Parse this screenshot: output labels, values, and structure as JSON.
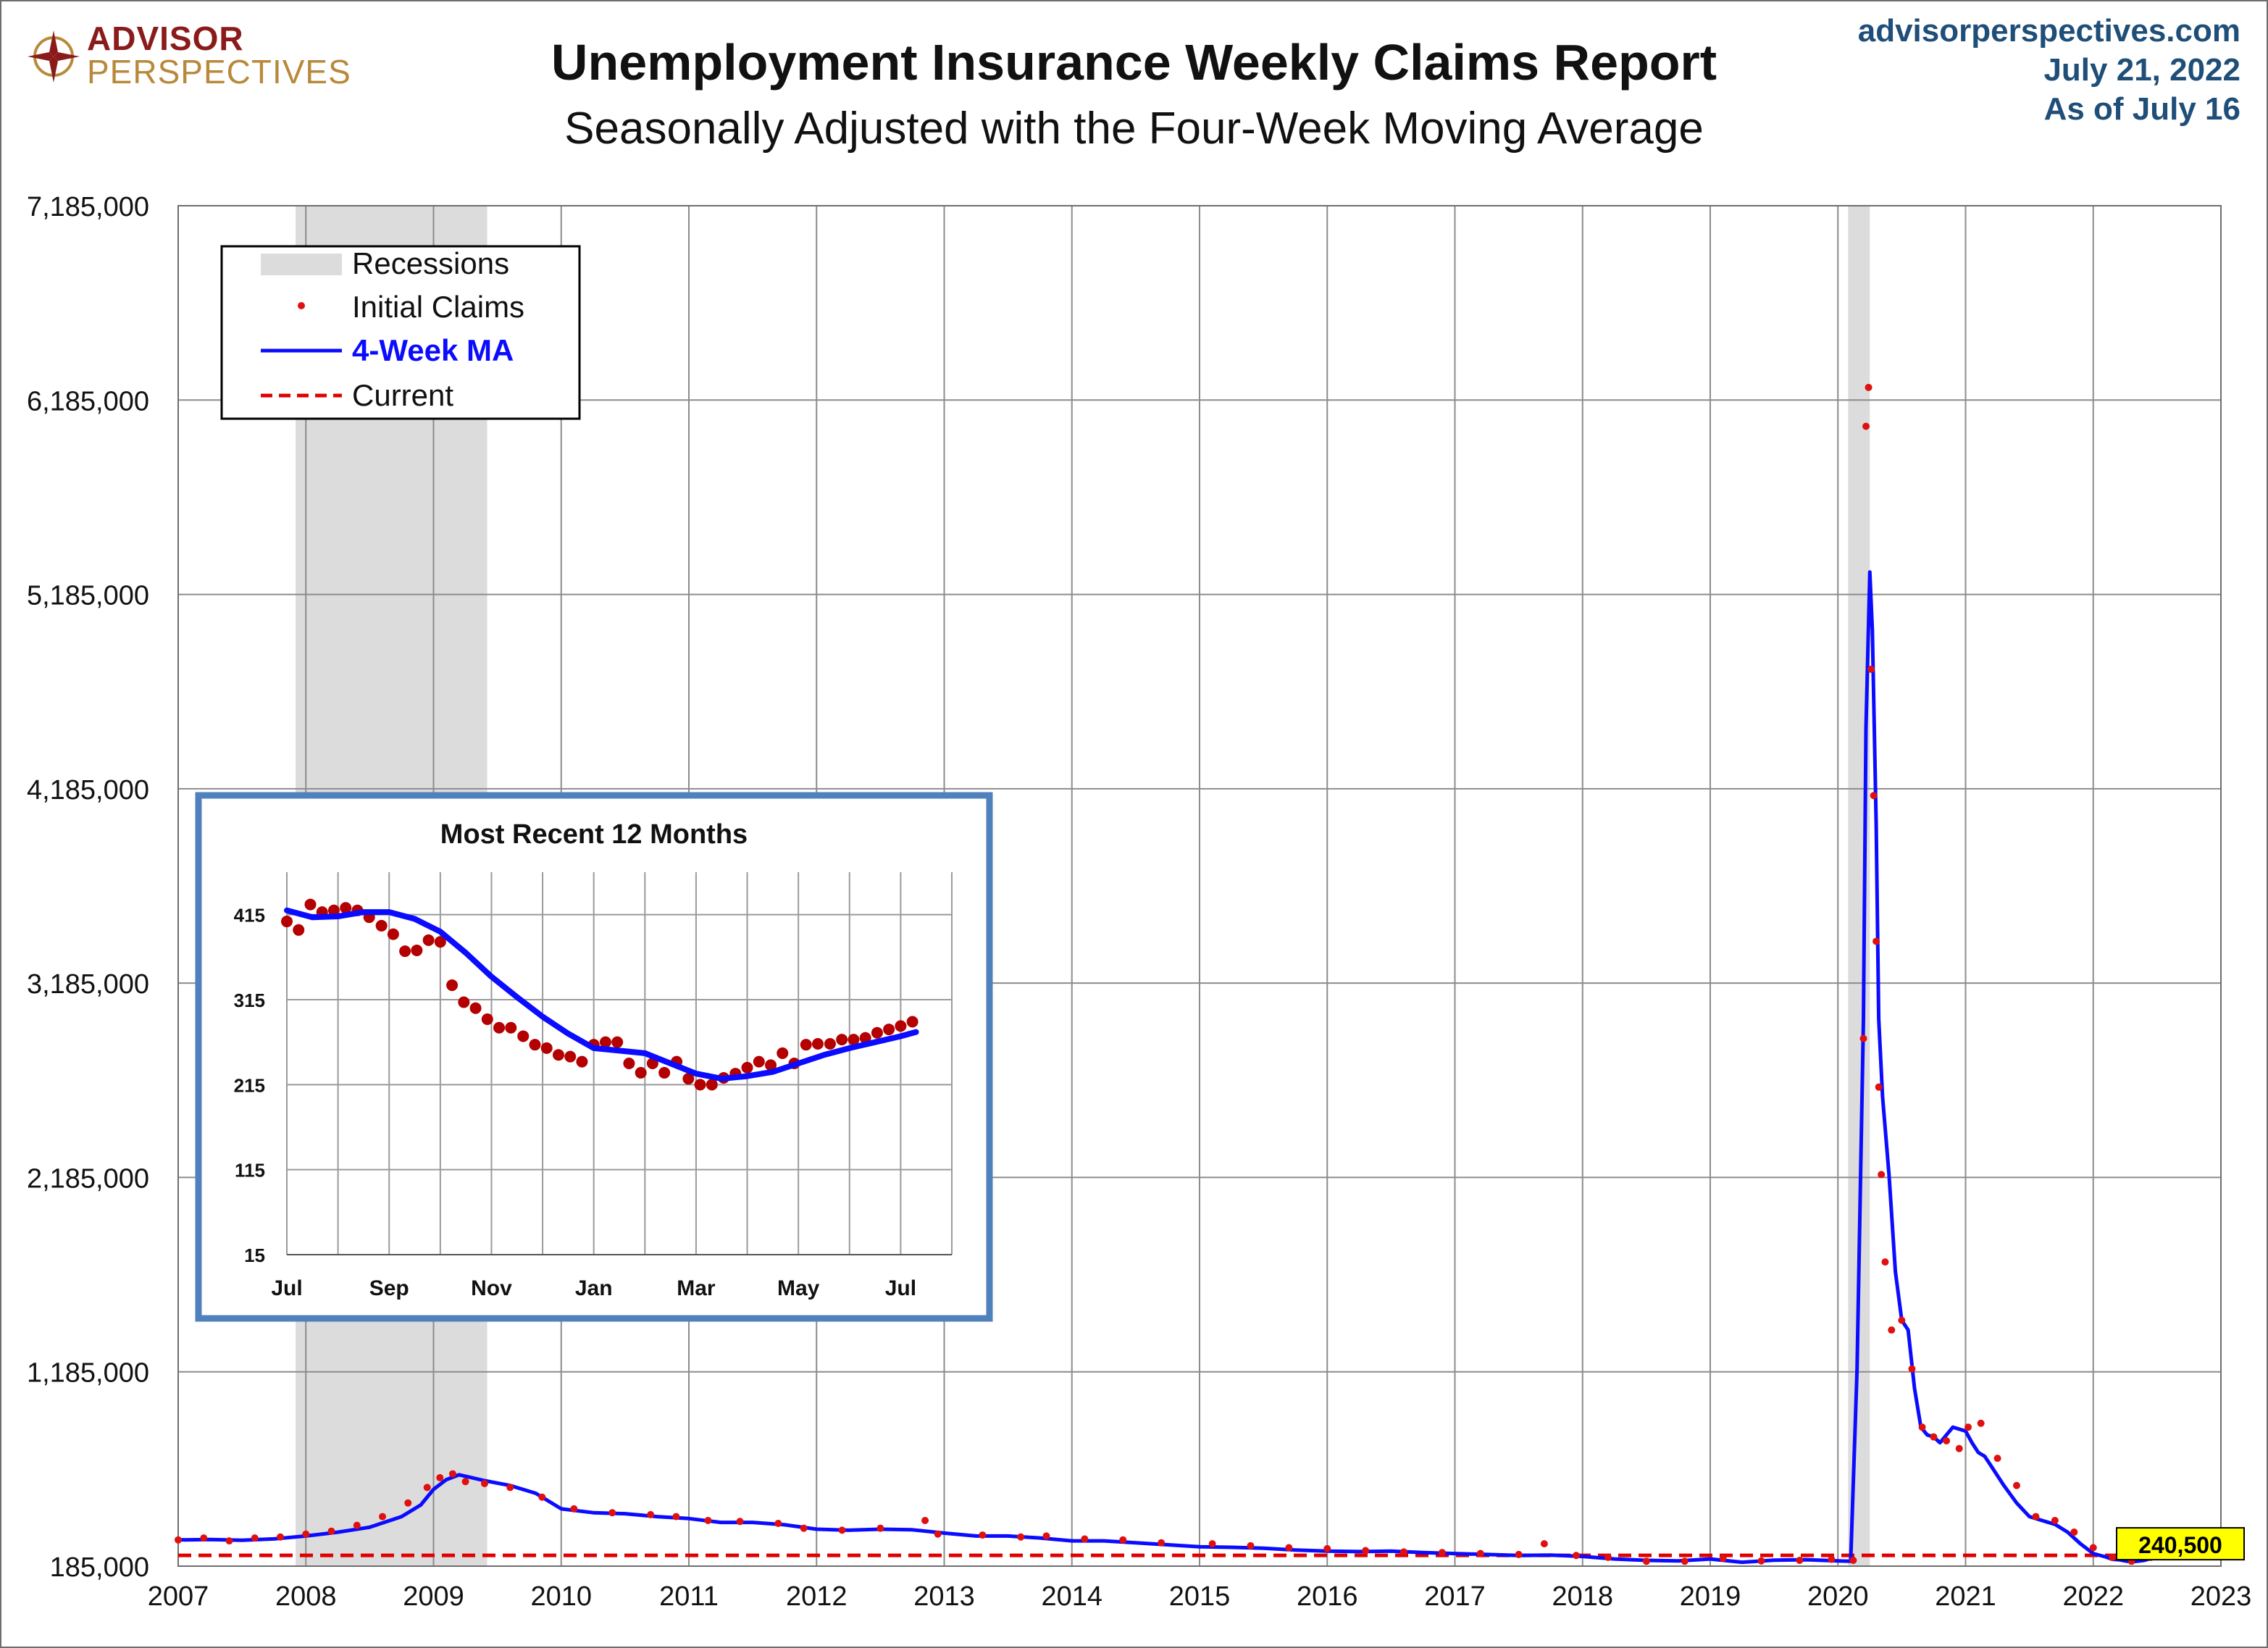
{
  "header": {
    "logo_line1": "ADVISOR",
    "logo_line2": "PERSPECTIVES",
    "title": "Unemployment Insurance Weekly Claims Report",
    "subtitle": "Seasonally Adjusted with the Four-Week Moving Average",
    "site": "advisorperspectives.com",
    "date": "July 21, 2022",
    "as_of": "As of July 16"
  },
  "colors": {
    "ma_line": "#0b0bff",
    "claims_dots": "#e01010",
    "inset_claims_dots": "#b40000",
    "current_line": "#e00000",
    "recession_band": "#dcdcdc",
    "current_label_bg": "#ffff00",
    "inset_border": "#4f81bd",
    "grid": "#8c8c8c"
  },
  "chart_data": [
    {
      "type": "line",
      "x_range": [
        2007,
        2023
      ],
      "x_ticks": [
        "2007",
        "2008",
        "2009",
        "2010",
        "2011",
        "2012",
        "2013",
        "2014",
        "2015",
        "2016",
        "2017",
        "2018",
        "2019",
        "2020",
        "2021",
        "2022",
        "2023"
      ],
      "y_range": [
        185000,
        7185000
      ],
      "y_ticks": [
        "185,000",
        "1,185,000",
        "2,185,000",
        "3,185,000",
        "4,185,000",
        "5,185,000",
        "6,185,000",
        "7,185,000"
      ],
      "grid": true,
      "legend_position": "top-left",
      "legend": [
        "Recessions",
        "Initial Claims",
        "4-Week MA",
        "Current"
      ],
      "recessions": [
        [
          2007.92,
          2009.42
        ],
        [
          2020.08,
          2020.25
        ]
      ],
      "current_value": 240500,
      "current_label": "240,500",
      "series": [
        {
          "name": "4-Week MA",
          "style": "line",
          "x": [
            2007.0,
            2007.25,
            2007.5,
            2007.75,
            2008.0,
            2008.25,
            2008.5,
            2008.75,
            2008.9,
            2009.0,
            2009.1,
            2009.2,
            2009.3,
            2009.4,
            2009.6,
            2009.8,
            2010.0,
            2010.25,
            2010.5,
            2010.75,
            2011.0,
            2011.25,
            2011.5,
            2011.75,
            2012.0,
            2012.25,
            2012.5,
            2012.75,
            2013.0,
            2013.25,
            2013.5,
            2013.75,
            2014.0,
            2014.25,
            2014.5,
            2014.75,
            2015.0,
            2015.25,
            2015.5,
            2015.75,
            2016.0,
            2016.25,
            2016.5,
            2016.75,
            2017.0,
            2017.25,
            2017.5,
            2017.75,
            2018.0,
            2018.25,
            2018.5,
            2018.75,
            2019.0,
            2019.25,
            2019.5,
            2019.75,
            2020.0,
            2020.1,
            2020.15,
            2020.2,
            2020.22,
            2020.25,
            2020.27,
            2020.3,
            2020.32,
            2020.35,
            2020.4,
            2020.45,
            2020.5,
            2020.55,
            2020.6,
            2020.65,
            2020.7,
            2020.75,
            2020.8,
            2020.9,
            2021.0,
            2021.05,
            2021.1,
            2021.15,
            2021.2,
            2021.3,
            2021.4,
            2021.5,
            2021.6,
            2021.7,
            2021.8,
            2021.9,
            2022.0,
            2022.1,
            2022.15,
            2022.2,
            2022.25,
            2022.3,
            2022.4,
            2022.5,
            2022.55
          ],
          "y": [
            320000,
            322000,
            318000,
            325000,
            340000,
            360000,
            385000,
            440000,
            500000,
            580000,
            630000,
            655000,
            640000,
            625000,
            600000,
            560000,
            480000,
            460000,
            455000,
            440000,
            430000,
            410000,
            410000,
            398000,
            375000,
            370000,
            375000,
            372000,
            355000,
            340000,
            340000,
            330000,
            315000,
            315000,
            305000,
            295000,
            285000,
            282000,
            277000,
            268000,
            262000,
            260000,
            262000,
            255000,
            250000,
            245000,
            240000,
            242000,
            235000,
            222000,
            215000,
            212000,
            222000,
            205000,
            216000,
            218000,
            212000,
            210000,
            1200000,
            3000000,
            4500000,
            5300000,
            5000000,
            4000000,
            3000000,
            2600000,
            2200000,
            1700000,
            1450000,
            1400000,
            1100000,
            900000,
            860000,
            850000,
            820000,
            900000,
            880000,
            820000,
            770000,
            750000,
            700000,
            600000,
            510000,
            440000,
            420000,
            400000,
            360000,
            300000,
            250000,
            232000,
            220000,
            218000,
            212000,
            207000,
            215000,
            235000,
            245000
          ]
        },
        {
          "name": "Initial Claims",
          "style": "dots",
          "x": [
            2007.0,
            2007.2,
            2007.4,
            2007.6,
            2007.8,
            2008.0,
            2008.2,
            2008.4,
            2008.6,
            2008.8,
            2008.95,
            2009.05,
            2009.15,
            2009.25,
            2009.4,
            2009.6,
            2009.85,
            2010.1,
            2010.4,
            2010.7,
            2010.9,
            2011.15,
            2011.4,
            2011.7,
            2011.9,
            2012.2,
            2012.5,
            2012.85,
            2012.95,
            2013.3,
            2013.6,
            2013.8,
            2014.1,
            2014.4,
            2014.7,
            2015.1,
            2015.4,
            2015.7,
            2016.0,
            2016.3,
            2016.6,
            2016.9,
            2017.2,
            2017.5,
            2017.7,
            2017.95,
            2018.2,
            2018.5,
            2018.8,
            2019.1,
            2019.4,
            2019.7,
            2019.95,
            2020.12,
            2020.2,
            2020.22,
            2020.24,
            2020.26,
            2020.28,
            2020.3,
            2020.32,
            2020.34,
            2020.37,
            2020.42,
            2020.5,
            2020.58,
            2020.66,
            2020.75,
            2020.85,
            2020.95,
            2021.02,
            2021.12,
            2021.25,
            2021.4,
            2021.55,
            2021.7,
            2021.85,
            2022.0,
            2022.15,
            2022.3,
            2022.45,
            2022.52
          ],
          "y": [
            320000,
            330000,
            315000,
            330000,
            335000,
            350000,
            365000,
            395000,
            440000,
            510000,
            590000,
            640000,
            660000,
            620000,
            610000,
            590000,
            540000,
            480000,
            460000,
            450000,
            440000,
            420000,
            415000,
            405000,
            380000,
            370000,
            380000,
            420000,
            350000,
            345000,
            335000,
            340000,
            325000,
            320000,
            305000,
            300000,
            290000,
            280000,
            275000,
            265000,
            258000,
            255000,
            250000,
            245000,
            300000,
            240000,
            230000,
            210000,
            210000,
            225000,
            212000,
            215000,
            220000,
            215000,
            2900000,
            6050000,
            6250000,
            4800000,
            4150000,
            3400000,
            2650000,
            2200000,
            1750000,
            1400000,
            1450000,
            1200000,
            900000,
            850000,
            830000,
            790000,
            900000,
            920000,
            740000,
            600000,
            440000,
            420000,
            360000,
            280000,
            230000,
            210000,
            230000,
            245000
          ]
        }
      ]
    },
    {
      "type": "line",
      "title": "Most Recent 12 Months",
      "x_ticks": [
        "Jul",
        "Sep",
        "Nov",
        "Jan",
        "Mar",
        "May",
        "Jul"
      ],
      "x_range": [
        0,
        13
      ],
      "y_range": [
        15,
        465
      ],
      "y_ticks": [
        "15",
        "115",
        "215",
        "315",
        "415"
      ],
      "grid": true,
      "series": [
        {
          "name": "Initial Claims",
          "style": "dots",
          "x": [
            0.0,
            0.23,
            0.46,
            0.69,
            0.92,
            1.15,
            1.38,
            1.61,
            1.85,
            2.08,
            2.31,
            2.54,
            2.77,
            3.0,
            3.23,
            3.46,
            3.69,
            3.92,
            4.15,
            4.38,
            4.62,
            4.85,
            5.08,
            5.31,
            5.54,
            5.77,
            6.0,
            6.23,
            6.46,
            6.69,
            6.92,
            7.15,
            7.38,
            7.62,
            7.85,
            8.08,
            8.31,
            8.54,
            8.77,
            9.0,
            9.23,
            9.46,
            9.69,
            9.92,
            10.15,
            10.38,
            10.62,
            10.85,
            11.08,
            11.31,
            11.54,
            11.77,
            12.0,
            12.23
          ],
          "y": [
            407,
            397,
            427,
            418,
            420,
            423,
            420,
            412,
            402,
            392,
            372,
            373,
            385,
            383,
            332,
            312,
            305,
            292,
            282,
            282,
            272,
            262,
            258,
            250,
            248,
            242,
            262,
            265,
            265,
            240,
            229,
            240,
            229,
            242,
            222,
            215,
            215,
            223,
            228,
            235,
            242,
            238,
            252,
            240,
            262,
            263,
            263,
            268,
            268,
            270,
            276,
            280,
            284,
            289
          ]
        },
        {
          "name": "4-Week MA",
          "style": "line",
          "x": [
            0.0,
            0.5,
            1.0,
            1.5,
            2.0,
            2.5,
            3.0,
            3.5,
            4.0,
            4.5,
            5.0,
            5.5,
            6.0,
            6.5,
            7.0,
            7.5,
            8.0,
            8.5,
            9.0,
            9.5,
            10.0,
            10.5,
            11.0,
            11.5,
            12.0,
            12.3
          ],
          "y": [
            420,
            412,
            413,
            418,
            418,
            410,
            395,
            370,
            342,
            318,
            295,
            275,
            258,
            255,
            252,
            240,
            228,
            222,
            225,
            230,
            240,
            250,
            258,
            265,
            272,
            277
          ]
        }
      ]
    }
  ]
}
